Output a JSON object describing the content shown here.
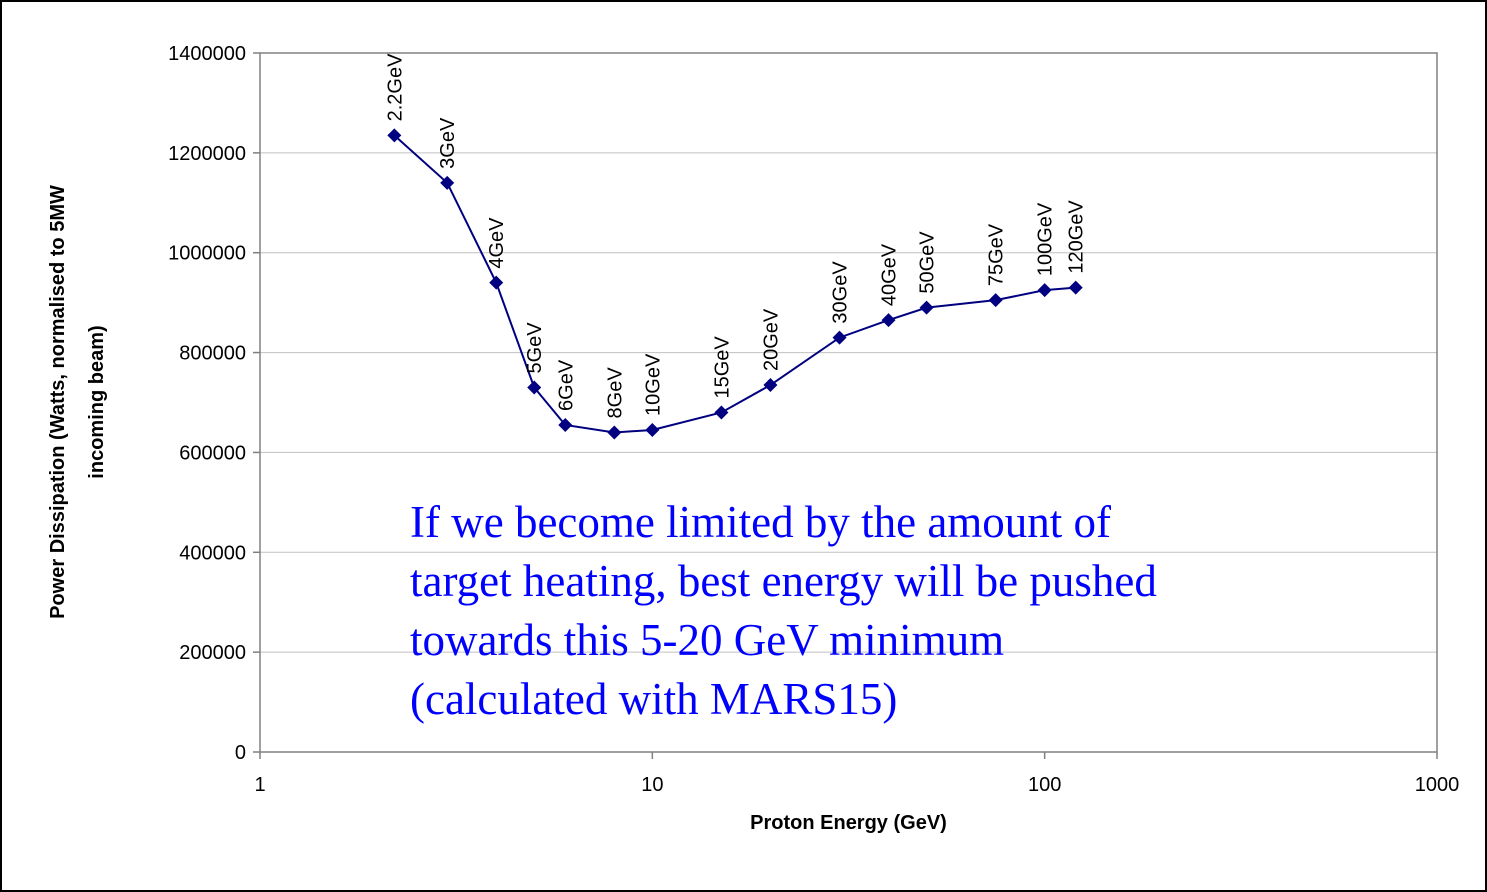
{
  "chart_data": {
    "type": "line",
    "xlabel": "Proton Energy (GeV)",
    "ylabel": [
      "Power Dissipation (Watts, normalised to 5MW",
      "incoming beam)"
    ],
    "annotation": [
      "If we become limited by the amount of",
      "target heating, best energy will be pushed",
      "towards this 5-20 GeV minimum",
      "(calculated with MARS15)"
    ],
    "x": [
      2.2,
      3,
      4,
      5,
      6,
      8,
      10,
      15,
      20,
      30,
      40,
      50,
      75,
      100,
      120
    ],
    "series": [
      {
        "color": "#000080",
        "values": [
          1235000,
          1140000,
          940000,
          730000,
          655000,
          640000,
          645000,
          680000,
          735000,
          830000,
          865000,
          890000,
          905000,
          925000,
          930000
        ],
        "point_labels": [
          "2.2GeV",
          "3GeV",
          "4GeV",
          "5GeV",
          "6GeV",
          "8GeV",
          "10GeV",
          "15GeV",
          "20GeV",
          "30GeV",
          "40GeV",
          "50GeV",
          "75GeV",
          "100GeV",
          "120GeV"
        ]
      }
    ],
    "xlim": [
      1,
      1000
    ],
    "xticks": [
      1,
      10,
      100,
      1000
    ],
    "xscale": "log",
    "ylim": [
      0,
      1400000
    ],
    "yticks": [
      0,
      200000,
      400000,
      600000,
      800000,
      1000000,
      1200000,
      1400000
    ],
    "grid": true
  }
}
